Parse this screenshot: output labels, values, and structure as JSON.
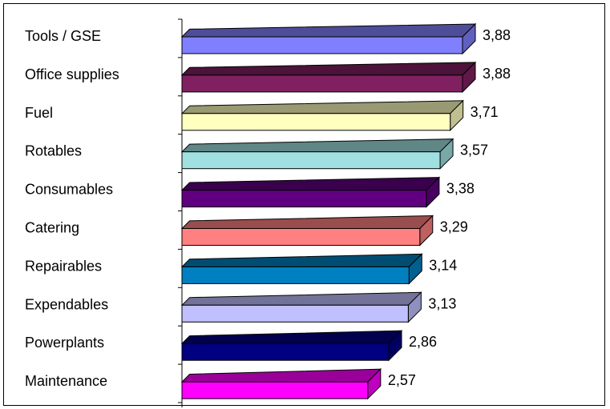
{
  "chart_data": {
    "type": "bar",
    "orientation": "horizontal",
    "style": "3d",
    "categories": [
      "Tools / GSE",
      "Office supplies",
      "Fuel",
      "Rotables",
      "Consumables",
      "Catering",
      "Repairables",
      "Expendables",
      "Powerplants",
      "Maintenance"
    ],
    "values": [
      3.88,
      3.88,
      3.71,
      3.57,
      3.38,
      3.29,
      3.14,
      3.13,
      2.86,
      2.57
    ],
    "value_labels": [
      "3,88",
      "3,88",
      "3,71",
      "3,57",
      "3,38",
      "3,29",
      "3,14",
      "3,13",
      "2,86",
      "2,57"
    ],
    "colors": [
      "#8080ff",
      "#802060",
      "#ffffc0",
      "#a0e0e0",
      "#600080",
      "#ff8080",
      "#0080c0",
      "#c0c0ff",
      "#000080",
      "#ff00ff"
    ],
    "xlim": [
      0,
      3.88
    ],
    "grid": false,
    "legend": "none",
    "title": "",
    "xlabel": "",
    "ylabel": ""
  }
}
